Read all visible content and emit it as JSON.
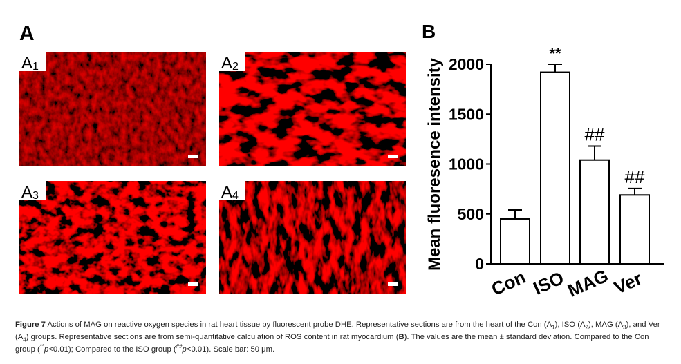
{
  "panel_a": {
    "label": "A",
    "images": [
      {
        "label": "A",
        "sub": "1"
      },
      {
        "label": "A",
        "sub": "2"
      },
      {
        "label": "A",
        "sub": "3"
      },
      {
        "label": "A",
        "sub": "4"
      }
    ]
  },
  "chart_data": {
    "type": "bar",
    "panel_label": "B",
    "y_label": "Mean fluoresence intensity",
    "categories": [
      "Con",
      "ISO",
      "MAG",
      "Ver"
    ],
    "values": [
      450,
      1920,
      1040,
      690
    ],
    "errors": [
      90,
      80,
      140,
      65
    ],
    "annotations": [
      null,
      "**",
      "##",
      "##"
    ],
    "color": "#ffffff",
    "edge_color": "#000000",
    "ylim": [
      0,
      2000
    ],
    "yticks": [
      0,
      500,
      1000,
      1500,
      2000
    ]
  },
  "caption": [
    "Figure 7",
    " Actions of MAG on reactive oxygen species in rat heart tissue by fluorescent probe DHE. Representative sections are from the heart of the Con (A",
    "1",
    "), ISO (A",
    "2",
    "), MAG (A",
    "3",
    "), and Ver (A",
    "4",
    ") groups. Representative sections are from semi-quantitative calculation of ROS content in rat myocardium (",
    "B",
    "). The values are the mean ± standard deviation. Compared to the Con group (",
    "**",
    "p",
    "<0.01); Compared to the ISO group (",
    "##",
    "p",
    "<0.01). Scale bar: 50 μm."
  ]
}
